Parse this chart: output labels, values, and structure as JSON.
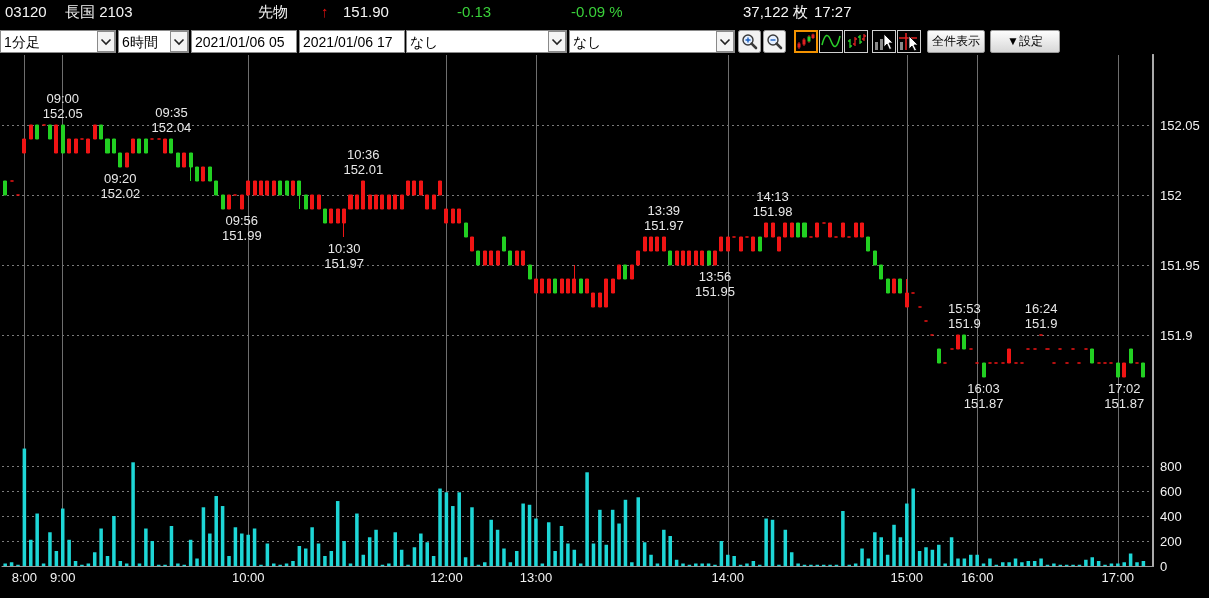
{
  "chart_data": {
    "type": "candlestick",
    "categories": [
      null,
      null,
      null,
      "8:00",
      null,
      null,
      null,
      null,
      null,
      "9:00",
      null,
      null,
      null,
      null,
      null,
      null,
      null,
      null,
      null,
      null,
      null,
      null,
      null,
      null,
      null,
      null,
      null,
      null,
      null,
      null,
      null,
      null,
      null,
      null,
      null,
      null,
      null,
      null,
      "10:00",
      null,
      null,
      null,
      null,
      null,
      null,
      null,
      null,
      null,
      null,
      null,
      null,
      null,
      null,
      null,
      null,
      null,
      null,
      null,
      null,
      null,
      null,
      null,
      null,
      null,
      null,
      null,
      null,
      null,
      null,
      "12:00",
      null,
      null,
      null,
      null,
      null,
      null,
      null,
      null,
      null,
      null,
      null,
      null,
      null,
      "13:00",
      null,
      null,
      null,
      null,
      null,
      null,
      null,
      null,
      null,
      null,
      null,
      null,
      null,
      null,
      null,
      null,
      null,
      null,
      null,
      null,
      null,
      null,
      null,
      null,
      null,
      null,
      null,
      null,
      null,
      "14:00",
      null,
      null,
      null,
      null,
      null,
      null,
      null,
      null,
      null,
      null,
      null,
      null,
      null,
      null,
      null,
      null,
      null,
      null,
      null,
      null,
      null,
      null,
      null,
      null,
      null,
      null,
      null,
      "15:00",
      null,
      null,
      null,
      null,
      null,
      null,
      null,
      null,
      null,
      null,
      "16:00",
      null,
      null,
      null,
      null,
      null,
      null,
      null,
      null,
      null,
      null,
      null,
      null,
      null,
      null,
      null,
      null,
      null,
      null,
      null,
      null,
      null,
      "17:00",
      null,
      null,
      null,
      null,
      null
    ],
    "ohlc": [
      [
        152.01,
        152.01,
        152,
        152
      ],
      [
        152.01,
        152.01,
        152.01,
        152.01
      ],
      [
        152,
        152,
        152,
        152
      ],
      [
        152.03,
        152.04,
        152.03,
        152.04
      ],
      [
        152.04,
        152.05,
        152.04,
        152.05
      ],
      [
        152.05,
        152.05,
        152.04,
        152.04
      ],
      [
        152.05,
        152.05,
        152.05,
        152.05
      ],
      [
        152.05,
        152.05,
        152.04,
        152.04
      ],
      [
        152.03,
        152.05,
        152.03,
        152.05
      ],
      [
        152.05,
        152.05,
        152.03,
        152.03
      ],
      [
        152.03,
        152.04,
        152.03,
        152.04
      ],
      [
        152.03,
        152.04,
        152.03,
        152.04
      ],
      [
        152.04,
        152.04,
        152.04,
        152.04
      ],
      [
        152.03,
        152.04,
        152.03,
        152.04
      ],
      [
        152.04,
        152.05,
        152.04,
        152.05
      ],
      [
        152.05,
        152.05,
        152.04,
        152.04
      ],
      [
        152.04,
        152.04,
        152.03,
        152.03
      ],
      [
        152.04,
        152.04,
        152.03,
        152.03
      ],
      [
        152.03,
        152.03,
        152.02,
        152.02
      ],
      [
        152.02,
        152.03,
        152.02,
        152.03
      ],
      [
        152.03,
        152.04,
        152.03,
        152.04
      ],
      [
        152.04,
        152.04,
        152.03,
        152.03
      ],
      [
        152.04,
        152.04,
        152.03,
        152.03
      ],
      [
        152.04,
        152.04,
        152.04,
        152.04
      ],
      [
        152.04,
        152.04,
        152.04,
        152.04
      ],
      [
        152.03,
        152.04,
        152.03,
        152.04
      ],
      [
        152.04,
        152.04,
        152.03,
        152.03
      ],
      [
        152.03,
        152.03,
        152.02,
        152.02
      ],
      [
        152.02,
        152.03,
        152.02,
        152.03
      ],
      [
        152.03,
        152.03,
        152.01,
        152.02
      ],
      [
        152.02,
        152.02,
        152.01,
        152.01
      ],
      [
        152.01,
        152.02,
        152.01,
        152.02
      ],
      [
        152.02,
        152.02,
        152.01,
        152.01
      ],
      [
        152.01,
        152.01,
        152,
        152
      ],
      [
        152,
        152,
        151.99,
        151.99
      ],
      [
        151.99,
        152,
        151.99,
        152
      ],
      [
        152,
        152,
        152,
        152
      ],
      [
        151.99,
        152,
        151.99,
        152
      ],
      [
        152,
        152.01,
        152,
        152.01
      ],
      [
        152,
        152.01,
        152,
        152.01
      ],
      [
        152,
        152.01,
        152,
        152.01
      ],
      [
        152,
        152.01,
        152,
        152.01
      ],
      [
        152,
        152.01,
        152,
        152.01
      ],
      [
        152.01,
        152.01,
        152,
        152
      ],
      [
        152.01,
        152.01,
        152,
        152
      ],
      [
        152,
        152.01,
        152,
        152.01
      ],
      [
        152.01,
        152.01,
        151.99,
        152
      ],
      [
        152,
        152,
        151.99,
        151.99
      ],
      [
        151.99,
        152,
        151.99,
        152
      ],
      [
        151.99,
        152,
        151.99,
        152
      ],
      [
        151.99,
        151.99,
        151.98,
        151.98
      ],
      [
        151.98,
        151.99,
        151.98,
        151.99
      ],
      [
        151.98,
        151.99,
        151.98,
        151.99
      ],
      [
        151.98,
        151.99,
        151.97,
        151.99
      ],
      [
        151.99,
        152,
        151.99,
        152
      ],
      [
        151.99,
        152,
        151.99,
        152
      ],
      [
        151.99,
        152.01,
        151.99,
        152.01
      ],
      [
        151.99,
        152,
        151.99,
        152
      ],
      [
        151.99,
        152,
        151.99,
        152
      ],
      [
        151.99,
        152,
        151.99,
        152
      ],
      [
        151.99,
        152,
        151.99,
        152
      ],
      [
        151.99,
        152,
        151.99,
        152
      ],
      [
        151.99,
        152,
        151.99,
        152
      ],
      [
        152,
        152.01,
        152,
        152.01
      ],
      [
        152,
        152.01,
        152,
        152.01
      ],
      [
        152,
        152.01,
        152,
        152.01
      ],
      [
        151.99,
        152,
        151.99,
        152
      ],
      [
        151.99,
        152,
        151.99,
        152
      ],
      [
        152,
        152.01,
        152,
        152.01
      ],
      [
        151.98,
        151.99,
        151.98,
        151.99
      ],
      [
        151.98,
        151.99,
        151.98,
        151.99
      ],
      [
        151.98,
        151.99,
        151.98,
        151.99
      ],
      [
        151.98,
        151.98,
        151.97,
        151.97
      ],
      [
        151.96,
        151.97,
        151.96,
        151.97
      ],
      [
        151.96,
        151.96,
        151.95,
        151.95
      ],
      [
        151.95,
        151.96,
        151.95,
        151.96
      ],
      [
        151.95,
        151.96,
        151.95,
        151.96
      ],
      [
        151.95,
        151.96,
        151.95,
        151.96
      ],
      [
        151.97,
        151.97,
        151.96,
        151.96
      ],
      [
        151.96,
        151.96,
        151.95,
        151.95
      ],
      [
        151.95,
        151.96,
        151.95,
        151.96
      ],
      [
        151.95,
        151.96,
        151.95,
        151.96
      ],
      [
        151.95,
        151.95,
        151.94,
        151.94
      ],
      [
        151.93,
        151.94,
        151.93,
        151.94
      ],
      [
        151.93,
        151.94,
        151.93,
        151.94
      ],
      [
        151.93,
        151.94,
        151.93,
        151.94
      ],
      [
        151.94,
        151.94,
        151.93,
        151.93
      ],
      [
        151.93,
        151.94,
        151.93,
        151.94
      ],
      [
        151.93,
        151.94,
        151.93,
        151.94
      ],
      [
        151.93,
        151.95,
        151.93,
        151.94
      ],
      [
        151.94,
        151.94,
        151.93,
        151.93
      ],
      [
        151.93,
        151.94,
        151.93,
        151.94
      ],
      [
        151.92,
        151.93,
        151.92,
        151.93
      ],
      [
        151.92,
        151.93,
        151.92,
        151.93
      ],
      [
        151.92,
        151.94,
        151.92,
        151.94
      ],
      [
        151.93,
        151.94,
        151.93,
        151.94
      ],
      [
        151.94,
        151.95,
        151.94,
        151.95
      ],
      [
        151.95,
        151.95,
        151.94,
        151.94
      ],
      [
        151.94,
        151.95,
        151.94,
        151.95
      ],
      [
        151.95,
        151.96,
        151.95,
        151.96
      ],
      [
        151.96,
        151.97,
        151.96,
        151.97
      ],
      [
        151.96,
        151.97,
        151.96,
        151.97
      ],
      [
        151.96,
        151.97,
        151.96,
        151.97
      ],
      [
        151.96,
        151.97,
        151.96,
        151.97
      ],
      [
        151.96,
        151.96,
        151.95,
        151.95
      ],
      [
        151.95,
        151.96,
        151.95,
        151.96
      ],
      [
        151.95,
        151.96,
        151.95,
        151.96
      ],
      [
        151.95,
        151.96,
        151.95,
        151.96
      ],
      [
        151.95,
        151.96,
        151.95,
        151.96
      ],
      [
        151.95,
        151.96,
        151.95,
        151.96
      ],
      [
        151.96,
        151.96,
        151.95,
        151.95
      ],
      [
        151.95,
        151.96,
        151.95,
        151.96
      ],
      [
        151.96,
        151.97,
        151.96,
        151.97
      ],
      [
        151.96,
        151.97,
        151.96,
        151.97
      ],
      [
        151.97,
        151.97,
        151.97,
        151.97
      ],
      [
        151.96,
        151.97,
        151.96,
        151.97
      ],
      [
        151.97,
        151.97,
        151.97,
        151.97
      ],
      [
        151.96,
        151.97,
        151.96,
        151.97
      ],
      [
        151.97,
        151.97,
        151.96,
        151.96
      ],
      [
        151.97,
        151.98,
        151.97,
        151.98
      ],
      [
        151.97,
        151.98,
        151.97,
        151.98
      ],
      [
        151.96,
        151.97,
        151.96,
        151.97
      ],
      [
        151.97,
        151.98,
        151.97,
        151.98
      ],
      [
        151.97,
        151.98,
        151.97,
        151.98
      ],
      [
        151.98,
        151.98,
        151.97,
        151.97
      ],
      [
        151.98,
        151.98,
        151.97,
        151.97
      ],
      [
        151.97,
        151.97,
        151.97,
        151.97
      ],
      [
        151.97,
        151.98,
        151.97,
        151.98
      ],
      [
        151.98,
        151.98,
        151.98,
        151.98
      ],
      [
        151.97,
        151.98,
        151.97,
        151.98
      ],
      [
        151.97,
        151.97,
        151.97,
        151.97
      ],
      [
        151.97,
        151.98,
        151.97,
        151.98
      ],
      [
        151.97,
        151.97,
        151.97,
        151.97
      ],
      [
        151.97,
        151.98,
        151.97,
        151.98
      ],
      [
        151.97,
        151.98,
        151.97,
        151.98
      ],
      [
        151.97,
        151.97,
        151.96,
        151.96
      ],
      [
        151.96,
        151.96,
        151.95,
        151.95
      ],
      [
        151.95,
        151.95,
        151.94,
        151.94
      ],
      [
        151.94,
        151.94,
        151.93,
        151.93
      ],
      [
        151.93,
        151.94,
        151.93,
        151.94
      ],
      [
        151.94,
        151.94,
        151.93,
        151.93
      ],
      [
        151.92,
        151.94,
        151.92,
        151.93
      ],
      [
        151.93,
        151.93,
        151.93,
        151.93
      ],
      [
        151.92,
        151.92,
        151.92,
        151.92
      ],
      [
        151.91,
        151.91,
        151.91,
        151.91
      ],
      [
        151.9,
        151.9,
        151.9,
        151.9
      ],
      [
        151.89,
        151.89,
        151.88,
        151.88
      ],
      [
        151.88,
        151.88,
        151.88,
        151.88
      ],
      [
        151.89,
        151.89,
        151.89,
        151.89
      ],
      [
        151.89,
        151.9,
        151.89,
        151.9
      ],
      [
        151.9,
        151.9,
        151.89,
        151.89
      ],
      [
        151.89,
        151.89,
        151.89,
        151.89
      ],
      [
        151.88,
        151.88,
        151.88,
        151.88
      ],
      [
        151.88,
        151.88,
        151.87,
        151.87
      ],
      [
        151.88,
        151.88,
        151.88,
        151.88
      ],
      [
        151.88,
        151.88,
        151.88,
        151.88
      ],
      [
        151.88,
        151.88,
        151.88,
        151.88
      ],
      [
        151.88,
        151.89,
        151.88,
        151.89
      ],
      [
        151.88,
        151.88,
        151.88,
        151.88
      ],
      [
        151.88,
        151.88,
        151.88,
        151.88
      ],
      [
        151.89,
        151.89,
        151.89,
        151.89
      ],
      [
        151.89,
        151.89,
        151.89,
        151.89
      ],
      [
        151.9,
        151.9,
        151.9,
        151.9
      ],
      [
        151.89,
        151.89,
        151.89,
        151.89
      ],
      [
        151.88,
        151.88,
        151.88,
        151.88
      ],
      [
        151.89,
        151.89,
        151.89,
        151.89
      ],
      [
        151.88,
        151.88,
        151.88,
        151.88
      ],
      [
        151.89,
        151.89,
        151.89,
        151.89
      ],
      [
        151.88,
        151.88,
        151.88,
        151.88
      ],
      [
        151.89,
        151.89,
        151.89,
        151.89
      ],
      [
        151.89,
        151.89,
        151.88,
        151.88
      ],
      [
        151.88,
        151.88,
        151.88,
        151.88
      ],
      [
        151.88,
        151.88,
        151.88,
        151.88
      ],
      [
        151.88,
        151.88,
        151.88,
        151.88
      ],
      [
        151.88,
        151.88,
        151.87,
        151.87
      ],
      [
        151.87,
        151.88,
        151.87,
        151.88
      ],
      [
        151.89,
        151.89,
        151.88,
        151.88
      ],
      [
        151.88,
        151.88,
        151.88,
        151.88
      ],
      [
        151.88,
        151.88,
        151.87,
        151.87
      ],
      null
    ],
    "colors": [
      "#22d022",
      "#f01414",
      "#f01414",
      "#f01414",
      "#f01414",
      "#22d022",
      "#f01414",
      "#22d022",
      "#f01414",
      "#22d022",
      "#f01414",
      "#f01414",
      "#f01414",
      "#f01414",
      "#f01414",
      "#22d022",
      "#22d022",
      "#22d022",
      "#22d022",
      "#f01414",
      "#f01414",
      "#22d022",
      "#22d022",
      "#f01414",
      "#f01414",
      "#f01414",
      "#22d022",
      "#22d022",
      "#f01414",
      "#22d022",
      "#22d022",
      "#f01414",
      "#22d022",
      "#22d022",
      "#22d022",
      "#f01414",
      "#f01414",
      "#f01414",
      "#f01414",
      "#f01414",
      "#f01414",
      "#f01414",
      "#f01414",
      "#22d022",
      "#22d022",
      "#f01414",
      "#22d022",
      "#22d022",
      "#f01414",
      "#f01414",
      "#22d022",
      "#f01414",
      "#f01414",
      "#f01414",
      "#f01414",
      "#f01414",
      "#f01414",
      "#f01414",
      "#f01414",
      "#f01414",
      "#f01414",
      "#f01414",
      "#f01414",
      "#f01414",
      "#f01414",
      "#f01414",
      "#f01414",
      "#f01414",
      "#f01414",
      "#f01414",
      "#f01414",
      "#f01414",
      "#22d022",
      "#f01414",
      "#22d022",
      "#f01414",
      "#f01414",
      "#f01414",
      "#22d022",
      "#22d022",
      "#f01414",
      "#f01414",
      "#22d022",
      "#f01414",
      "#f01414",
      "#f01414",
      "#22d022",
      "#f01414",
      "#f01414",
      "#f01414",
      "#22d022",
      "#f01414",
      "#f01414",
      "#f01414",
      "#f01414",
      "#f01414",
      "#f01414",
      "#22d022",
      "#f01414",
      "#f01414",
      "#f01414",
      "#f01414",
      "#f01414",
      "#f01414",
      "#22d022",
      "#f01414",
      "#f01414",
      "#f01414",
      "#f01414",
      "#f01414",
      "#22d022",
      "#f01414",
      "#f01414",
      "#f01414",
      "#f01414",
      "#f01414",
      "#f01414",
      "#f01414",
      "#22d022",
      "#f01414",
      "#f01414",
      "#f01414",
      "#f01414",
      "#f01414",
      "#22d022",
      "#22d022",
      "#f01414",
      "#f01414",
      "#f01414",
      "#f01414",
      "#f01414",
      "#f01414",
      "#f01414",
      "#f01414",
      "#f01414",
      "#22d022",
      "#22d022",
      "#22d022",
      "#22d022",
      "#f01414",
      "#22d022",
      "#f01414",
      "#f01414",
      "#f01414",
      "#f01414",
      "#f01414",
      "#22d022",
      "#f01414",
      "#f01414",
      "#f01414",
      "#22d022",
      "#f01414",
      "#f01414",
      "#22d022",
      "#f01414",
      "#f01414",
      "#f01414",
      "#f01414",
      "#f01414",
      "#f01414",
      "#f01414",
      "#f01414",
      "#f01414",
      "#f01414",
      "#f01414",
      "#f01414",
      "#f01414",
      "#f01414",
      "#f01414",
      "#f01414",
      "#22d022",
      "#f01414",
      "#f01414",
      "#f01414",
      "#22d022",
      "#f01414",
      "#22d022",
      "#f01414",
      "#22d022",
      null
    ],
    "series": [
      {
        "type": "bar",
        "axis": "y2",
        "color": "#1ed6d6",
        "values": [
          20,
          30,
          10,
          940,
          210,
          420,
          20,
          270,
          120,
          460,
          210,
          40,
          10,
          20,
          110,
          300,
          80,
          400,
          40,
          20,
          830,
          20,
          300,
          200,
          10,
          10,
          320,
          20,
          10,
          210,
          60,
          470,
          260,
          560,
          480,
          80,
          310,
          260,
          250,
          300,
          10,
          180,
          20,
          10,
          20,
          40,
          160,
          140,
          310,
          180,
          80,
          120,
          520,
          200,
          20,
          420,
          90,
          230,
          290,
          10,
          20,
          270,
          130,
          10,
          150,
          260,
          190,
          80,
          620,
          590,
          480,
          590,
          70,
          470,
          10,
          30,
          370,
          290,
          140,
          30,
          120,
          500,
          490,
          380,
          20,
          350,
          120,
          320,
          180,
          130,
          20,
          750,
          180,
          450,
          170,
          450,
          340,
          530,
          30,
          550,
          190,
          90,
          20,
          290,
          240,
          50,
          20,
          10,
          20,
          20,
          20,
          10,
          200,
          90,
          80,
          10,
          20,
          40,
          10,
          380,
          370,
          10,
          290,
          110,
          20,
          10,
          10,
          10,
          10,
          10,
          10,
          440,
          10,
          20,
          140,
          60,
          270,
          230,
          90,
          330,
          230,
          500,
          620,
          120,
          150,
          130,
          170,
          20,
          230,
          60,
          60,
          90,
          90,
          20,
          60,
          10,
          30,
          30,
          60,
          30,
          40,
          40,
          60,
          10,
          20,
          10,
          10,
          10,
          10,
          50,
          70,
          40,
          10,
          20,
          20,
          30,
          100,
          30,
          40,
          null
        ]
      }
    ],
    "ylim": [
      151.735,
      152.1
    ],
    "yticks": [
      151.9,
      151.95,
      152,
      152.05
    ],
    "y2lim": [
      0,
      4090
    ],
    "y2ticks": [
      0,
      200,
      400,
      600,
      800
    ],
    "grid": true,
    "annotations": [
      "03120",
      "長国 2103",
      "先物",
      "↑",
      "151.90",
      "-0.13",
      "-0.09 %",
      "37,122 枚",
      "17:27",
      "1分足",
      "6時間",
      "2021/01/06 05",
      "2021/01/06 17",
      "なし",
      "なし",
      "全件表示",
      "▼設定",
      {
        "text": "09:00\n152.05",
        "y": 152.05
      },
      {
        "text": "09:20\n152.02",
        "y": 152.02
      },
      {
        "text": "09:35\n152.04",
        "y": 152.04
      },
      {
        "text": "09:56\n151.99",
        "y": 151.99
      },
      {
        "text": "10:30\n151.97",
        "y": 151.97
      },
      {
        "text": "10:36\n152.01",
        "y": 152.01
      },
      {
        "text": "13:39\n151.97",
        "y": 151.97
      },
      {
        "text": "13:56\n151.95",
        "y": 151.95
      },
      {
        "text": "14:13\n151.98",
        "y": 151.98
      },
      {
        "text": "15:53\n151.9",
        "y": 151.9
      },
      {
        "text": "16:03\n151.87",
        "y": 151.87
      },
      {
        "text": "16:24\n151.9",
        "y": 151.9
      },
      {
        "text": "17:02\n151.87",
        "y": 151.87
      }
    ]
  }
}
